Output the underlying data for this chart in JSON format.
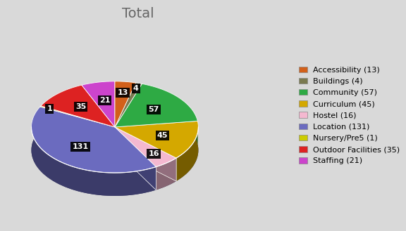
{
  "title": "Total",
  "categories": [
    "Accessibility",
    "Buildings",
    "Community",
    "Curriculum",
    "Hostel",
    "Location",
    "Nursery/Pre5",
    "Outdoor Facilities",
    "Staffing"
  ],
  "values": [
    13,
    4,
    57,
    45,
    16,
    131,
    1,
    35,
    21
  ],
  "colors": [
    "#D2601A",
    "#7A7A50",
    "#2EAA44",
    "#D4A800",
    "#F4B8D0",
    "#6B6BBF",
    "#CCCC00",
    "#DD2222",
    "#CC44CC"
  ],
  "legend_labels": [
    "Accessibility (13)",
    "Buildings (4)",
    "Community (57)",
    "Curriculum (45)",
    "Hostel (16)",
    "Location (131)",
    "Nursery/Pre5 (1)",
    "Outdoor Facilities (35)",
    "Staffing (21)"
  ],
  "background_color": "#D9D9D9",
  "title_fontsize": 14,
  "label_fontsize": 8,
  "legend_fontsize": 8
}
